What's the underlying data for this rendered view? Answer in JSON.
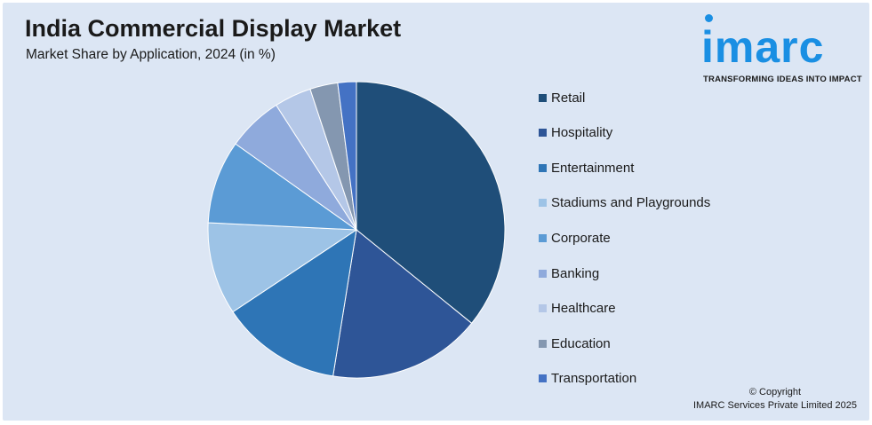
{
  "header": {
    "title": "India Commercial Display Market",
    "subtitle": "Market Share by Application, 2024 (in %)"
  },
  "logo": {
    "word": "imarc",
    "tagline": "TRANSFORMING IDEAS INTO IMPACT",
    "color": "#1a8fe3"
  },
  "chart_data": {
    "type": "pie",
    "categories": [
      "Retail",
      "Hospitality",
      "Entertainment",
      "Stadiums and Playgrounds",
      "Corporate",
      "Banking",
      "Healthcare",
      "Education",
      "Transportation"
    ],
    "values": [
      35.5,
      16.5,
      13.0,
      10.0,
      9.0,
      6.0,
      4.0,
      3.0,
      2.0
    ],
    "colors": [
      "#1f4e79",
      "#2e5597",
      "#2e75b6",
      "#9dc3e6",
      "#5b9bd5",
      "#8faadc",
      "#b4c7e7",
      "#8497b0",
      "#4472c4"
    ],
    "legend_position": "right"
  },
  "footer": {
    "copyright_line1": "© Copyright",
    "copyright_line2": "IMARC Services Private Limited 2025"
  }
}
